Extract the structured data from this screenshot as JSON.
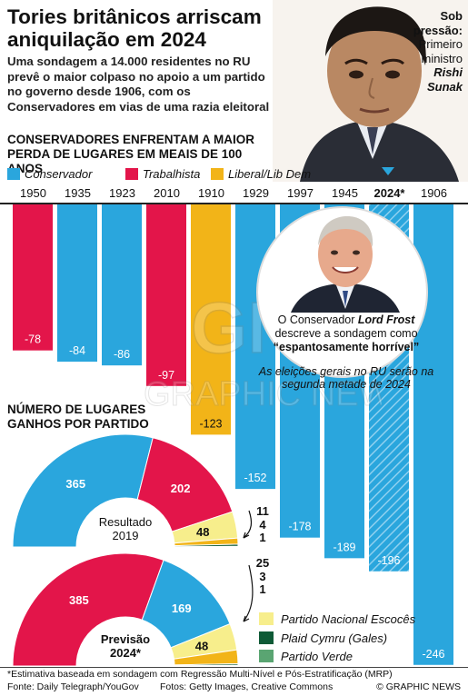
{
  "header": {
    "title": "Tories britânicos arriscam aniquilação em 2024",
    "intro": "Uma sondagem a 14.000 residentes no RU prevê o maior colpaso no apoio a um partido no governo desde 1906, com os Conservadores em vias de uma razia eleitoral",
    "chart_heading": "CONSERVADORES ENFRENTAM A MAIOR PERDA DE LUGARES EM MEAIS DE 100 ANOS"
  },
  "photo_caption": {
    "line1": "Sob",
    "line2": "pressão:",
    "line3": "Primeiro",
    "line4": "ministro",
    "name1": "Rishi",
    "name2": "Sunak"
  },
  "legend": [
    {
      "label": "Conservador",
      "color": "#2aa6dd"
    },
    {
      "label": "Trabalhista",
      "color": "#e3154a"
    },
    {
      "label": "Liberal/Lib Dem",
      "color": "#f2b418"
    }
  ],
  "frost": {
    "pre": "O Conservador ",
    "name": "Lord Frost",
    "mid": " descreve a sondagem como ",
    "quote": "“espantosamente horrível”",
    "note": "As eleições gerais no RU serão na segunda metade de 2024"
  },
  "seats": {
    "heading_line1": "NÚMERO DE LUGARES",
    "heading_line2": "GANHOS POR PARTIDO",
    "result_label1": "Resultado",
    "result_label2": "2019",
    "forecast_label1": "Previsão",
    "forecast_label2": "2024*",
    "result_small": [
      "11",
      "4",
      "1"
    ],
    "forecast_small": [
      "25",
      "3",
      "1"
    ]
  },
  "party_legend": [
    {
      "label": "Partido Nacional Escocês",
      "color": "#f7ee8c"
    },
    {
      "label": "Plaid Cymru (Gales)",
      "color": "#0e5a36"
    },
    {
      "label": "Partido Verde",
      "color": "#5aa572"
    }
  ],
  "footer": {
    "footnote": "*Estimativa baseada em sondagem com Regressão Multi-Nível e Pós-Estratificação (MRP)",
    "source": "Fonte: Daily Telegraph/YouGov",
    "photos": "Fotos: Getty Images, Creative Commons",
    "credit": "© GRAPHIC NEWS"
  },
  "chart_data": [
    {
      "type": "bar",
      "title": "CONSERVADORES ENFRENTAM A MAIOR PERDA DE LUGARES EM MEAIS DE 100 ANOS",
      "categories": [
        "1950",
        "1935",
        "1923",
        "2010",
        "1910",
        "1929",
        "1997",
        "1945",
        "2024*",
        "1906"
      ],
      "values": [
        -78,
        -84,
        -86,
        -97,
        -123,
        -152,
        -178,
        -189,
        -196,
        -246
      ],
      "value_labels": [
        "-78",
        "-84",
        "-86",
        "-97",
        "-123",
        "-152",
        "-178",
        "-189",
        "-196",
        "-246"
      ],
      "party": [
        "Trabalhista",
        "Conservador",
        "Conservador",
        "Trabalhista",
        "Liberal/Lib Dem",
        "Conservador",
        "Conservador",
        "Conservador",
        "Conservador",
        "Conservador"
      ],
      "highlight": "2024*",
      "ylim": [
        -246,
        0
      ]
    },
    {
      "type": "pie",
      "title": "Resultado 2019",
      "series": [
        {
          "name": "Conservador",
          "value": 365,
          "color": "#2aa6dd"
        },
        {
          "name": "Trabalhista",
          "value": 202,
          "color": "#e3154a"
        },
        {
          "name": "Partido Nacional Escocês",
          "value": 48,
          "color": "#f7ee8c"
        },
        {
          "name": "Liberal/Lib Dem",
          "value": 11,
          "color": "#f2b418"
        },
        {
          "name": "Plaid Cymru (Gales)",
          "value": 4,
          "color": "#0e5a36"
        },
        {
          "name": "Partido Verde",
          "value": 1,
          "color": "#5aa572"
        }
      ]
    },
    {
      "type": "pie",
      "title": "Previsão 2024*",
      "series": [
        {
          "name": "Trabalhista",
          "value": 385,
          "color": "#e3154a"
        },
        {
          "name": "Conservador",
          "value": 169,
          "color": "#2aa6dd"
        },
        {
          "name": "Partido Nacional Escocês",
          "value": 48,
          "color": "#f7ee8c"
        },
        {
          "name": "Liberal/Lib Dem",
          "value": 25,
          "color": "#f2b418"
        },
        {
          "name": "Plaid Cymru (Gales)",
          "value": 3,
          "color": "#0e5a36"
        },
        {
          "name": "Partido Verde",
          "value": 1,
          "color": "#5aa572"
        }
      ]
    }
  ]
}
